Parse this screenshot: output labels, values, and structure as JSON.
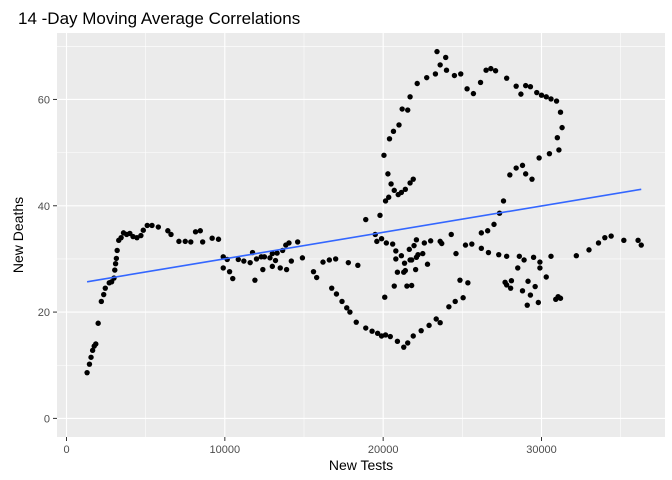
{
  "chart_data": {
    "type": "scatter",
    "title": "14 -Day Moving Average Correlations",
    "xlabel": "New Tests",
    "ylabel": "New Deaths",
    "xlim": [
      -600,
      37800
    ],
    "ylim": [
      -3.5,
      72.5
    ],
    "xticks": [
      0,
      10000,
      20000,
      30000
    ],
    "xtick_labels": [
      "0",
      "10000",
      "20000",
      "30000"
    ],
    "yticks": [
      0,
      20,
      40,
      60
    ],
    "ytick_labels": [
      "0",
      "20",
      "40",
      "60"
    ],
    "grid": true,
    "legend": "none",
    "colors": {
      "panel": "#ebebeb",
      "grid": "#ffffff",
      "points": "#000000",
      "trend": "#3366ff"
    },
    "trend_line": {
      "x": [
        1300,
        36300
      ],
      "y": [
        25.7,
        43.1
      ]
    },
    "points": [
      [
        1300,
        8.6
      ],
      [
        1450,
        10.2
      ],
      [
        1550,
        11.5
      ],
      [
        1650,
        12.8
      ],
      [
        1750,
        13.6
      ],
      [
        1850,
        14.0
      ],
      [
        2000,
        17.9
      ],
      [
        2200,
        22.0
      ],
      [
        2350,
        23.3
      ],
      [
        2450,
        24.5
      ],
      [
        2700,
        25.5
      ],
      [
        2850,
        25.7
      ],
      [
        3000,
        26.4
      ],
      [
        3050,
        27.9
      ],
      [
        3100,
        29.1
      ],
      [
        3150,
        30.1
      ],
      [
        3200,
        31.6
      ],
      [
        3300,
        33.5
      ],
      [
        3450,
        34.0
      ],
      [
        3600,
        34.9
      ],
      [
        3800,
        34.6
      ],
      [
        4000,
        34.8
      ],
      [
        4200,
        34.2
      ],
      [
        4450,
        34.0
      ],
      [
        4700,
        34.4
      ],
      [
        4850,
        35.4
      ],
      [
        5100,
        36.3
      ],
      [
        5400,
        36.3
      ],
      [
        5800,
        36.0
      ],
      [
        6400,
        35.3
      ],
      [
        6600,
        34.6
      ],
      [
        7100,
        33.3
      ],
      [
        7500,
        33.3
      ],
      [
        7850,
        33.2
      ],
      [
        8150,
        35.1
      ],
      [
        8450,
        35.3
      ],
      [
        8600,
        33.2
      ],
      [
        9200,
        33.9
      ],
      [
        9600,
        33.7
      ],
      [
        9900,
        30.4
      ],
      [
        10150,
        29.9
      ],
      [
        9900,
        28.3
      ],
      [
        10300,
        27.6
      ],
      [
        10500,
        26.3
      ],
      [
        10850,
        29.9
      ],
      [
        11200,
        29.6
      ],
      [
        11750,
        31.2
      ],
      [
        12000,
        30.0
      ],
      [
        11600,
        29.3
      ],
      [
        12300,
        30.4
      ],
      [
        12500,
        30.4
      ],
      [
        12850,
        30.2
      ],
      [
        13000,
        31.0
      ],
      [
        13300,
        31.1
      ],
      [
        13650,
        31.6
      ],
      [
        13850,
        32.6
      ],
      [
        14050,
        33.0
      ],
      [
        14600,
        33.2
      ],
      [
        14900,
        30.2
      ],
      [
        12400,
        28.0
      ],
      [
        11900,
        26.0
      ],
      [
        13000,
        28.6
      ],
      [
        13200,
        29.7
      ],
      [
        13500,
        28.3
      ],
      [
        13900,
        28.0
      ],
      [
        14200,
        29.6
      ],
      [
        15600,
        27.6
      ],
      [
        15800,
        26.5
      ],
      [
        16200,
        29.4
      ],
      [
        16600,
        29.8
      ],
      [
        16750,
        24.5
      ],
      [
        17050,
        23.4
      ],
      [
        17400,
        22.0
      ],
      [
        17700,
        20.8
      ],
      [
        17900,
        20.0
      ],
      [
        18300,
        18.1
      ],
      [
        18900,
        17.0
      ],
      [
        19300,
        16.4
      ],
      [
        19650,
        16.0
      ],
      [
        19900,
        15.5
      ],
      [
        20150,
        15.7
      ],
      [
        20450,
        15.4
      ],
      [
        20900,
        14.5
      ],
      [
        21300,
        13.4
      ],
      [
        21550,
        14.2
      ],
      [
        21900,
        15.5
      ],
      [
        22400,
        16.5
      ],
      [
        22900,
        17.5
      ],
      [
        23350,
        18.7
      ],
      [
        23600,
        18.0
      ],
      [
        24150,
        21.0
      ],
      [
        24550,
        22.0
      ],
      [
        25050,
        22.7
      ],
      [
        25350,
        25.5
      ],
      [
        24850,
        26.0
      ],
      [
        22800,
        29.0
      ],
      [
        22500,
        31.0
      ],
      [
        21950,
        32.5
      ],
      [
        21650,
        31.8
      ],
      [
        21300,
        27.5
      ],
      [
        20700,
        24.9
      ],
      [
        20100,
        22.8
      ],
      [
        20800,
        30.0
      ],
      [
        21350,
        29.2
      ],
      [
        21800,
        29.8
      ],
      [
        22100,
        30.3
      ],
      [
        17000,
        30.0
      ],
      [
        17800,
        29.3
      ],
      [
        18400,
        28.8
      ],
      [
        18900,
        37.4
      ],
      [
        19500,
        34.6
      ],
      [
        19600,
        33.3
      ],
      [
        19900,
        33.8
      ],
      [
        20200,
        33.0
      ],
      [
        20600,
        32.8
      ],
      [
        20800,
        31.5
      ],
      [
        21150,
        30.6
      ],
      [
        21700,
        29.8
      ],
      [
        22200,
        30.8
      ],
      [
        22050,
        28.0
      ],
      [
        21500,
        24.9
      ],
      [
        21800,
        25.0
      ],
      [
        21400,
        27.8
      ],
      [
        20900,
        27.5
      ],
      [
        22100,
        33.6
      ],
      [
        22600,
        33.0
      ],
      [
        23000,
        33.4
      ],
      [
        23700,
        32.9
      ],
      [
        24600,
        31.0
      ],
      [
        25200,
        32.6
      ],
      [
        25600,
        32.8
      ],
      [
        26200,
        32.0
      ],
      [
        26650,
        31.2
      ],
      [
        27300,
        30.8
      ],
      [
        27800,
        30.5
      ],
      [
        27700,
        25.6
      ],
      [
        28050,
        24.5
      ],
      [
        28500,
        28.3
      ],
      [
        28900,
        29.8
      ],
      [
        29150,
        25.8
      ],
      [
        29600,
        24.8
      ],
      [
        29900,
        28.3
      ],
      [
        30300,
        26.6
      ],
      [
        28600,
        30.5
      ],
      [
        29500,
        30.3
      ],
      [
        29900,
        29.4
      ],
      [
        30600,
        30.5
      ],
      [
        30900,
        22.4
      ],
      [
        31050,
        22.9
      ],
      [
        31200,
        22.6
      ],
      [
        29800,
        21.8
      ],
      [
        29300,
        23.2
      ],
      [
        29100,
        21.3
      ],
      [
        28800,
        24.0
      ],
      [
        27800,
        25.1
      ],
      [
        28100,
        25.9
      ],
      [
        32200,
        30.6
      ],
      [
        33000,
        31.7
      ],
      [
        33600,
        33.0
      ],
      [
        34000,
        34.0
      ],
      [
        34400,
        34.3
      ],
      [
        35200,
        33.5
      ],
      [
        36100,
        33.5
      ],
      [
        36300,
        32.6
      ],
      [
        20150,
        40.9
      ],
      [
        20350,
        41.6
      ],
      [
        20500,
        44.1
      ],
      [
        20700,
        42.9
      ],
      [
        20950,
        42.1
      ],
      [
        21150,
        42.5
      ],
      [
        21400,
        43.1
      ],
      [
        21700,
        44.3
      ],
      [
        21900,
        45.0
      ],
      [
        20300,
        46.0
      ],
      [
        20050,
        49.5
      ],
      [
        19800,
        38.2
      ],
      [
        20400,
        52.6
      ],
      [
        20650,
        54.0
      ],
      [
        21000,
        55.2
      ],
      [
        21200,
        58.2
      ],
      [
        21550,
        58.0
      ],
      [
        21700,
        60.5
      ],
      [
        22150,
        63.0
      ],
      [
        22750,
        64.1
      ],
      [
        23300,
        64.8
      ],
      [
        23600,
        66.5
      ],
      [
        23950,
        67.9
      ],
      [
        23400,
        69.0
      ],
      [
        24000,
        65.5
      ],
      [
        24500,
        64.5
      ],
      [
        24900,
        64.8
      ],
      [
        25300,
        62.0
      ],
      [
        25700,
        61.1
      ],
      [
        26150,
        63.2
      ],
      [
        26500,
        65.5
      ],
      [
        26800,
        65.8
      ],
      [
        27100,
        65.4
      ],
      [
        27800,
        64.0
      ],
      [
        28400,
        62.5
      ],
      [
        28700,
        61.0
      ],
      [
        29000,
        62.6
      ],
      [
        29300,
        62.4
      ],
      [
        29700,
        61.3
      ],
      [
        30000,
        60.8
      ],
      [
        30300,
        60.5
      ],
      [
        30600,
        60.1
      ],
      [
        30950,
        59.7
      ],
      [
        31200,
        57.6
      ],
      [
        31300,
        54.7
      ],
      [
        31000,
        52.8
      ],
      [
        31100,
        50.5
      ],
      [
        30500,
        49.8
      ],
      [
        29850,
        49.0
      ],
      [
        29400,
        45.0
      ],
      [
        29000,
        46.0
      ],
      [
        28800,
        47.6
      ],
      [
        28400,
        47.1
      ],
      [
        28000,
        45.8
      ],
      [
        27600,
        40.9
      ],
      [
        27350,
        38.6
      ],
      [
        27000,
        36.5
      ],
      [
        26600,
        35.3
      ],
      [
        26200,
        34.9
      ],
      [
        24300,
        34.6
      ],
      [
        23600,
        33.3
      ]
    ]
  }
}
